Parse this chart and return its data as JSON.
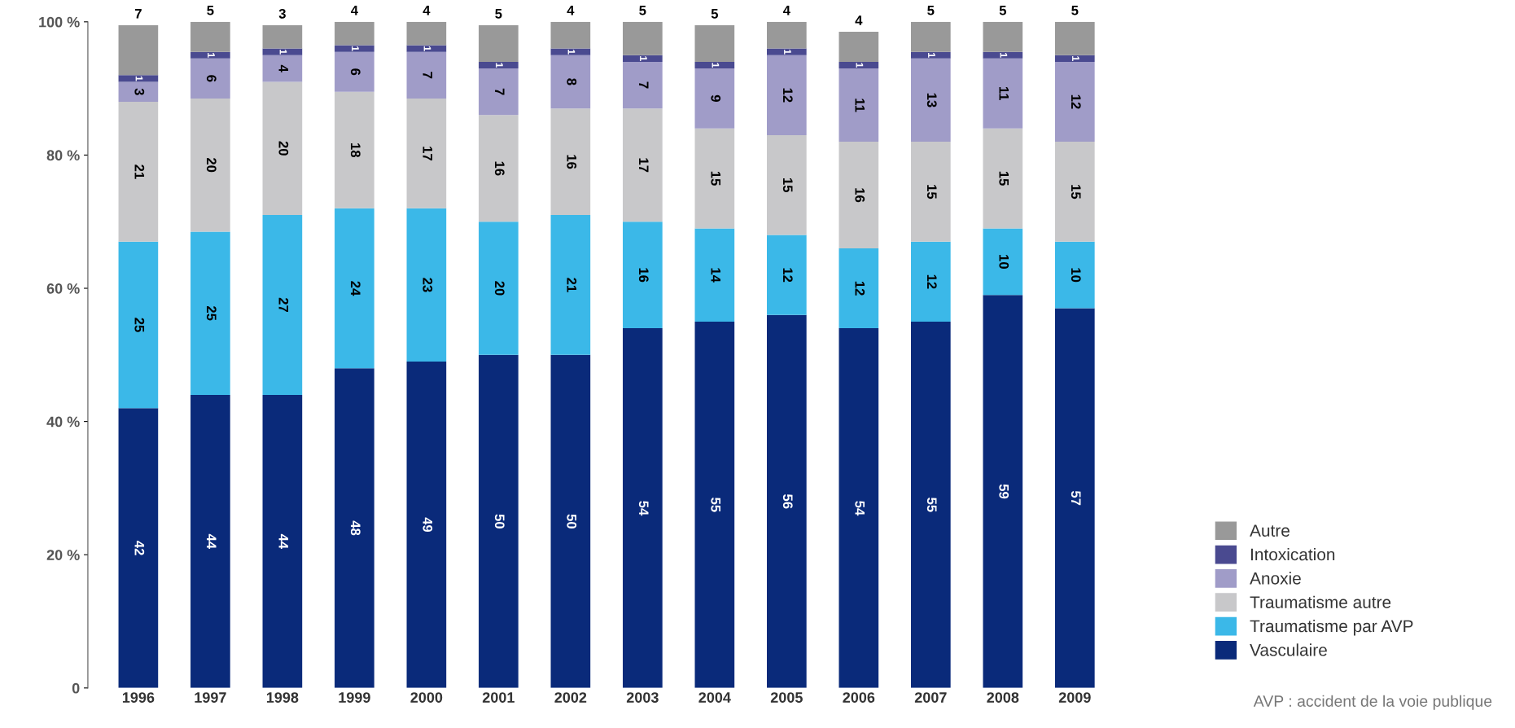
{
  "chart_data": {
    "type": "bar",
    "stacked": true,
    "legend": "bottom right",
    "grid": false,
    "categories": [
      "1996",
      "1997",
      "1998",
      "1999",
      "2000",
      "2001",
      "2002",
      "2003",
      "2004",
      "2005",
      "2006",
      "2007",
      "2008",
      "2009"
    ],
    "ylim": [
      0,
      100
    ],
    "yticks": [
      {
        "value": 0,
        "label": "0"
      },
      {
        "value": 20,
        "label": "20 %"
      },
      {
        "value": 40,
        "label": "40 %"
      },
      {
        "value": 60,
        "label": "60 %"
      },
      {
        "value": 80,
        "label": "80 %"
      },
      {
        "value": 100,
        "label": "100 %"
      }
    ],
    "series": [
      {
        "name": "Vasculaire",
        "color": "#0a2a7a",
        "values": [
          42,
          44,
          44,
          48,
          49,
          50,
          50,
          54,
          55,
          56,
          54,
          55,
          59,
          57
        ],
        "value_labels": [
          "42",
          "44",
          "44",
          "48",
          "49",
          "50",
          "50",
          "54",
          "55",
          "56",
          "54",
          "55",
          "59",
          "57"
        ]
      },
      {
        "name": "Traumatisme par AVP",
        "color": "#3bb8e8",
        "values": [
          25,
          24.5,
          27,
          24,
          23,
          20,
          21,
          16,
          14,
          12,
          12,
          12,
          10,
          10
        ],
        "value_labels": [
          "25",
          "25",
          "27",
          "24",
          "23",
          "20",
          "21",
          "16",
          "14",
          "12",
          "12",
          "12",
          "10",
          "10"
        ]
      },
      {
        "name": "Traumatisme autre",
        "color": "#c8c8ca",
        "values": [
          21,
          20,
          20,
          17.5,
          16.5,
          16,
          16,
          17,
          15,
          15,
          16,
          15,
          15,
          15
        ],
        "value_labels": [
          "21",
          "20",
          "20",
          "18",
          "17",
          "16",
          "16",
          "17",
          "15",
          "15",
          "16",
          "15",
          "15",
          "15"
        ]
      },
      {
        "name": "Anoxie",
        "color": "#a09cc8",
        "values": [
          3,
          6,
          4,
          6,
          7,
          7,
          8,
          7,
          9,
          12,
          11,
          12.5,
          10.5,
          12
        ],
        "value_labels": [
          "3",
          "6",
          "4",
          "6",
          "7",
          "7",
          "8",
          "7",
          "9",
          "12",
          "11",
          "13",
          "11",
          "12"
        ]
      },
      {
        "name": "Intoxication",
        "color": "#4a4a90",
        "values": [
          1,
          1,
          1,
          1,
          1,
          1,
          1,
          1,
          1,
          1,
          1,
          1,
          1,
          1
        ],
        "value_labels": [
          "1",
          "1",
          "1",
          "1",
          "1",
          "1",
          "1",
          "1",
          "1",
          "1",
          "1",
          "1",
          "1",
          "1"
        ]
      },
      {
        "name": "Autre",
        "color": "#999999",
        "values": [
          7.5,
          4.5,
          3.5,
          3.5,
          3.5,
          5.5,
          4,
          5,
          5.5,
          4,
          4.5,
          4.5,
          4.5,
          5
        ],
        "value_labels": [
          "7",
          "5",
          "3",
          "4",
          "4",
          "5",
          "4",
          "5",
          "5",
          "4",
          "4",
          "5",
          "5",
          "5"
        ]
      }
    ],
    "annotations": [
      "AVP : accident de la voie publique"
    ]
  }
}
